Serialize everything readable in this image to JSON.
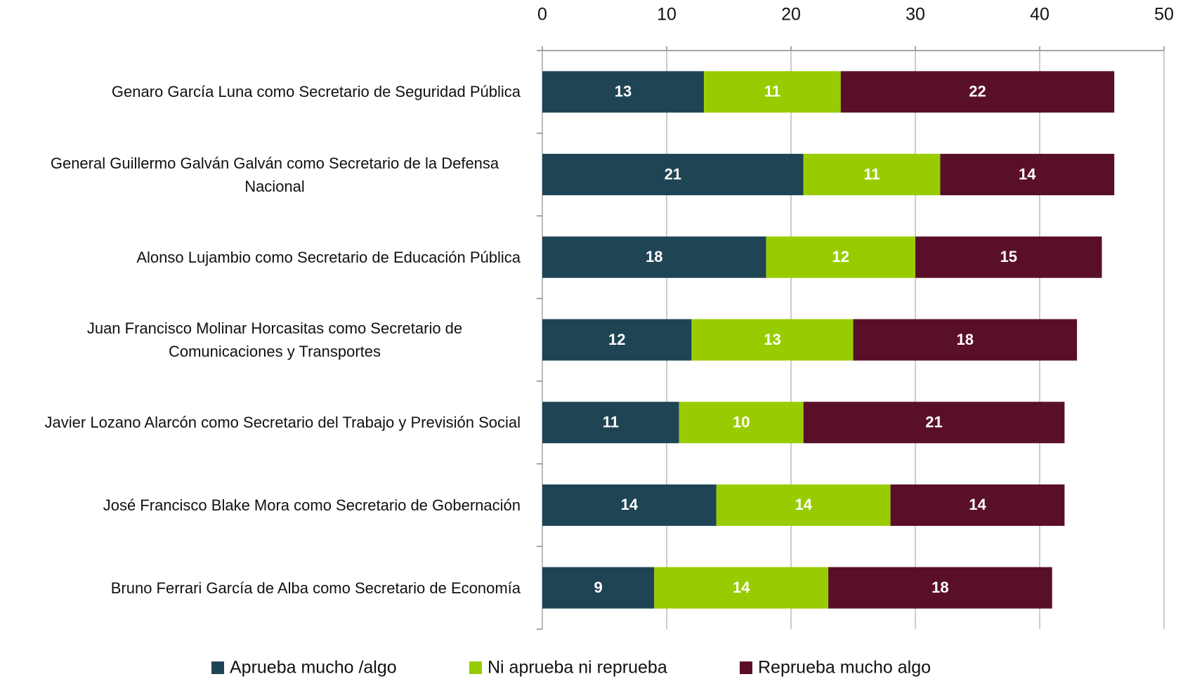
{
  "chart_data": {
    "type": "stacked-bar-horizontal",
    "categories": [
      "Genaro García Luna como Secretario de Seguridad Pública",
      "General Guillermo Galván Galván como Secretario de la Defensa Nacional",
      "Alonso Lujambio como Secretario de Educación Pública",
      "Juan Francisco Molinar Horcasitas como Secretario de Comunicaciones y Transportes",
      "Javier Lozano Alarcón como Secretario del Trabajo y Previsión Social",
      "José Francisco Blake Mora como Secretario de Gobernación",
      "Bruno Ferrari García de Alba como Secretario de Economía"
    ],
    "series": [
      {
        "name": "Aprueba mucho /algo",
        "color": "#1f4555",
        "values": [
          13,
          21,
          18,
          12,
          11,
          14,
          9
        ]
      },
      {
        "name": "Ni aprueba ni reprueba",
        "color": "#99cc00",
        "values": [
          11,
          11,
          12,
          13,
          10,
          14,
          14
        ]
      },
      {
        "name": "Reprueba mucho algo",
        "color": "#5a0f29",
        "values": [
          22,
          14,
          15,
          18,
          21,
          14,
          18
        ]
      }
    ],
    "xlim": [
      0,
      50
    ],
    "xticks": [
      0,
      10,
      20,
      30,
      40,
      50
    ],
    "grid": true,
    "legend": "bottom"
  }
}
